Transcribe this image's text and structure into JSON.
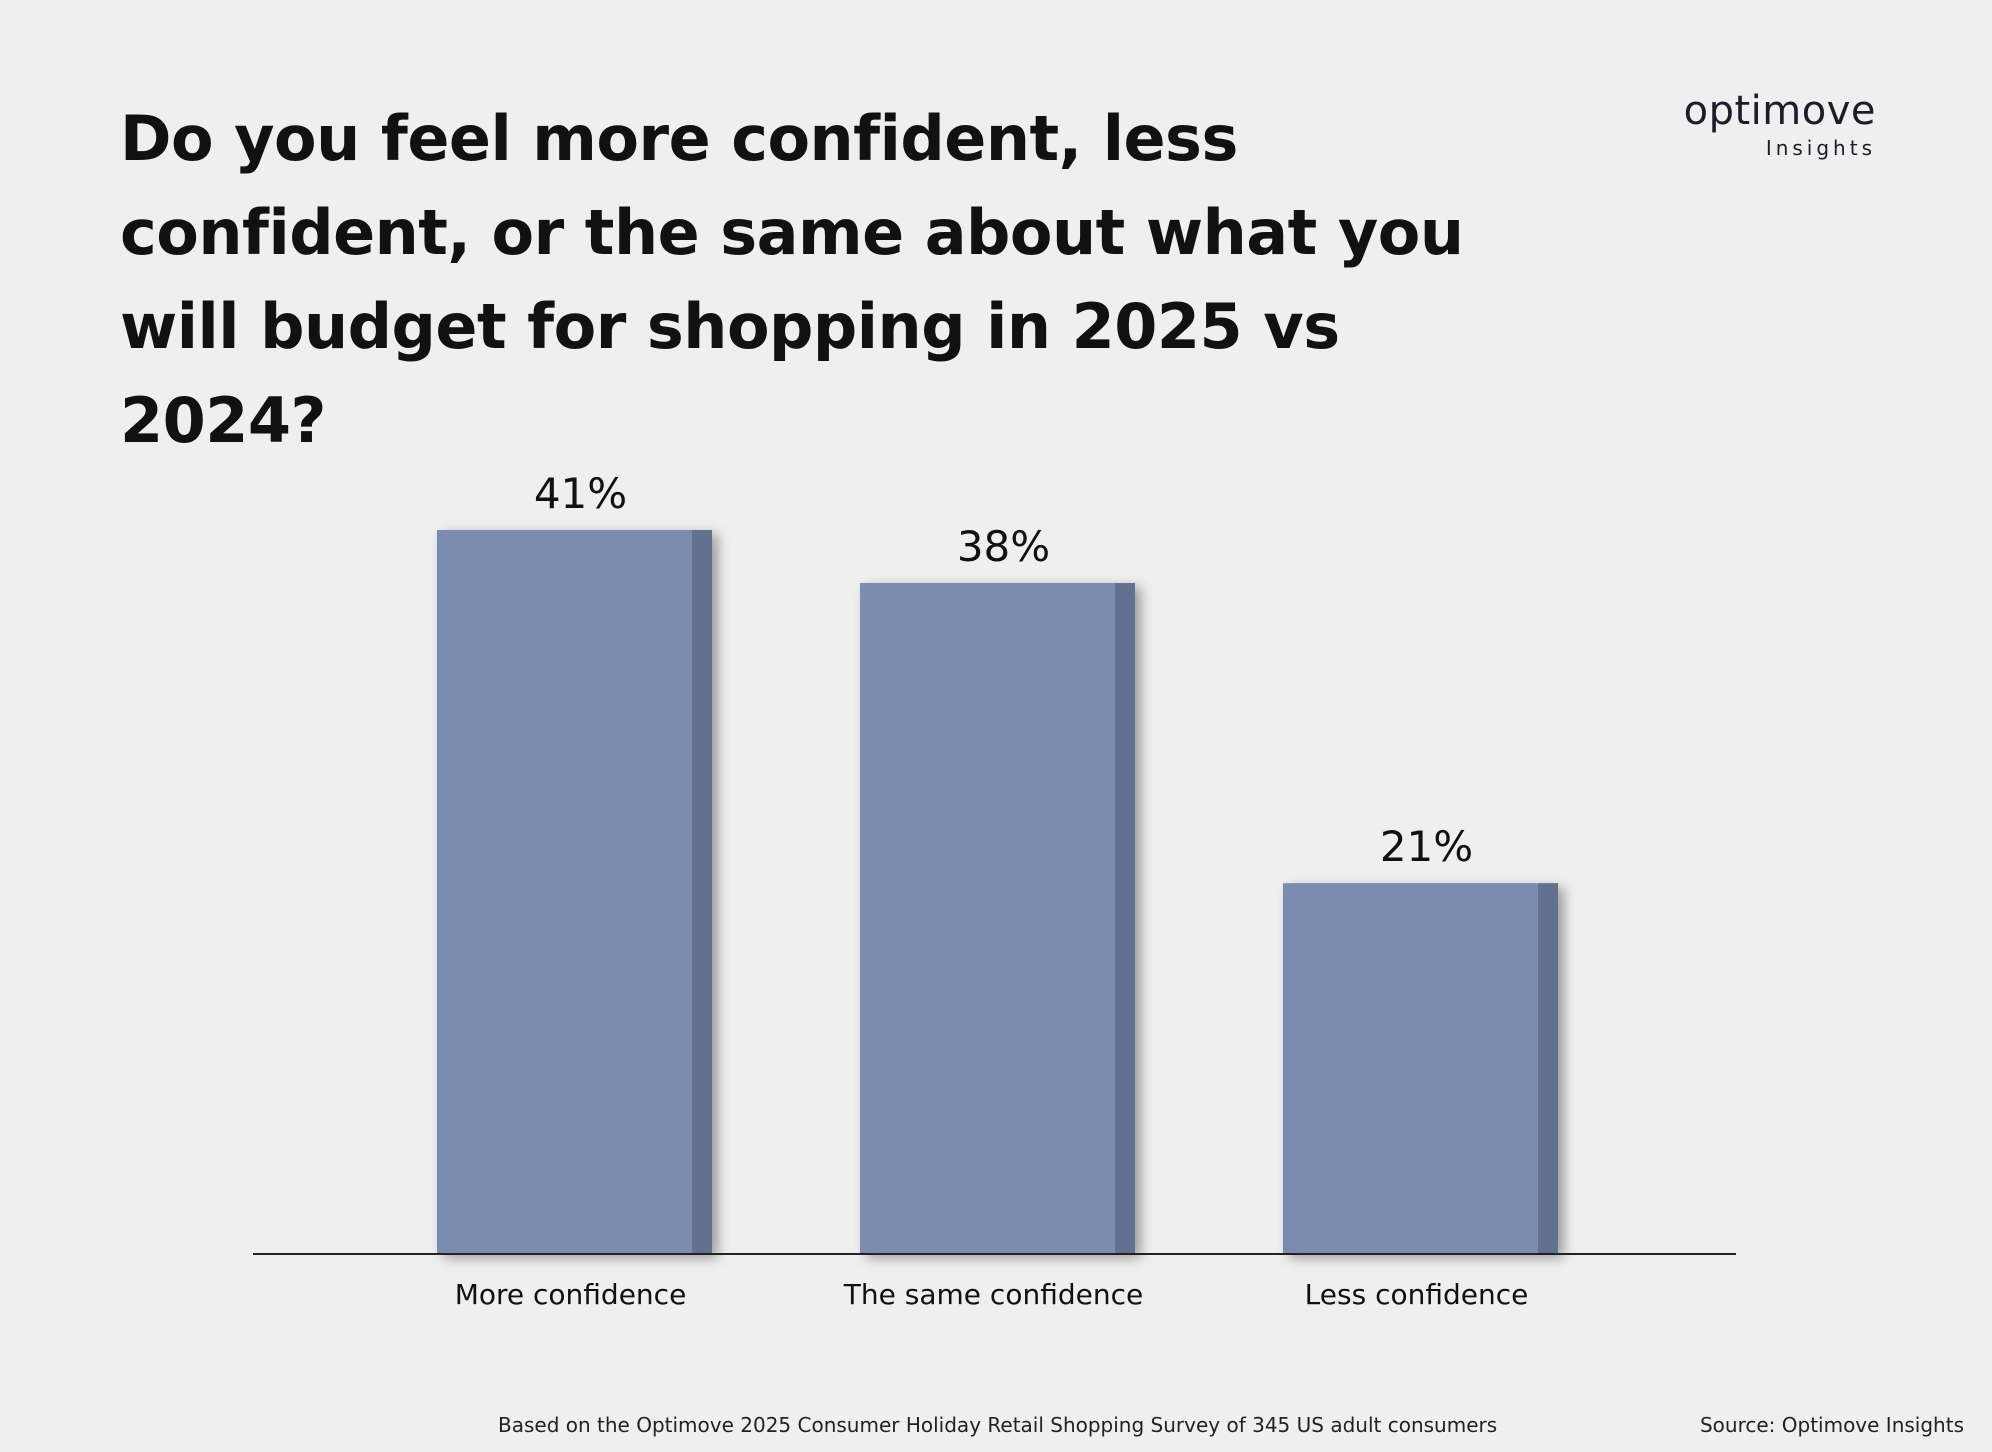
{
  "header": {
    "title": "Do you feel more confident, less confident, or the same about what you will budget for shopping in 2025 vs 2024?",
    "logo_word": "optimove",
    "logo_sub": "Insights"
  },
  "colors": {
    "bar": "#7b8bb0",
    "bar_side": "#636f8f",
    "background": "#efefef",
    "axis": "#222222"
  },
  "chart_data": {
    "type": "bar",
    "title": "Do you feel more confident, less confident, or the same about what you will budget for shopping in 2025 vs 2024?",
    "categories": [
      "More confidence",
      "The same confidence",
      "Less confidence"
    ],
    "values": [
      41,
      38,
      21
    ],
    "value_labels": [
      "41%",
      "38%",
      "21%"
    ],
    "xlabel": "",
    "ylabel": "",
    "ylim": [
      0,
      41
    ],
    "grid": false,
    "legend": "none"
  },
  "footer": {
    "note": "Based on the Optimove 2025 Consumer Holiday Retail Shopping Survey of 345 US adult consumers",
    "source": "Source: Optimove Insights"
  }
}
